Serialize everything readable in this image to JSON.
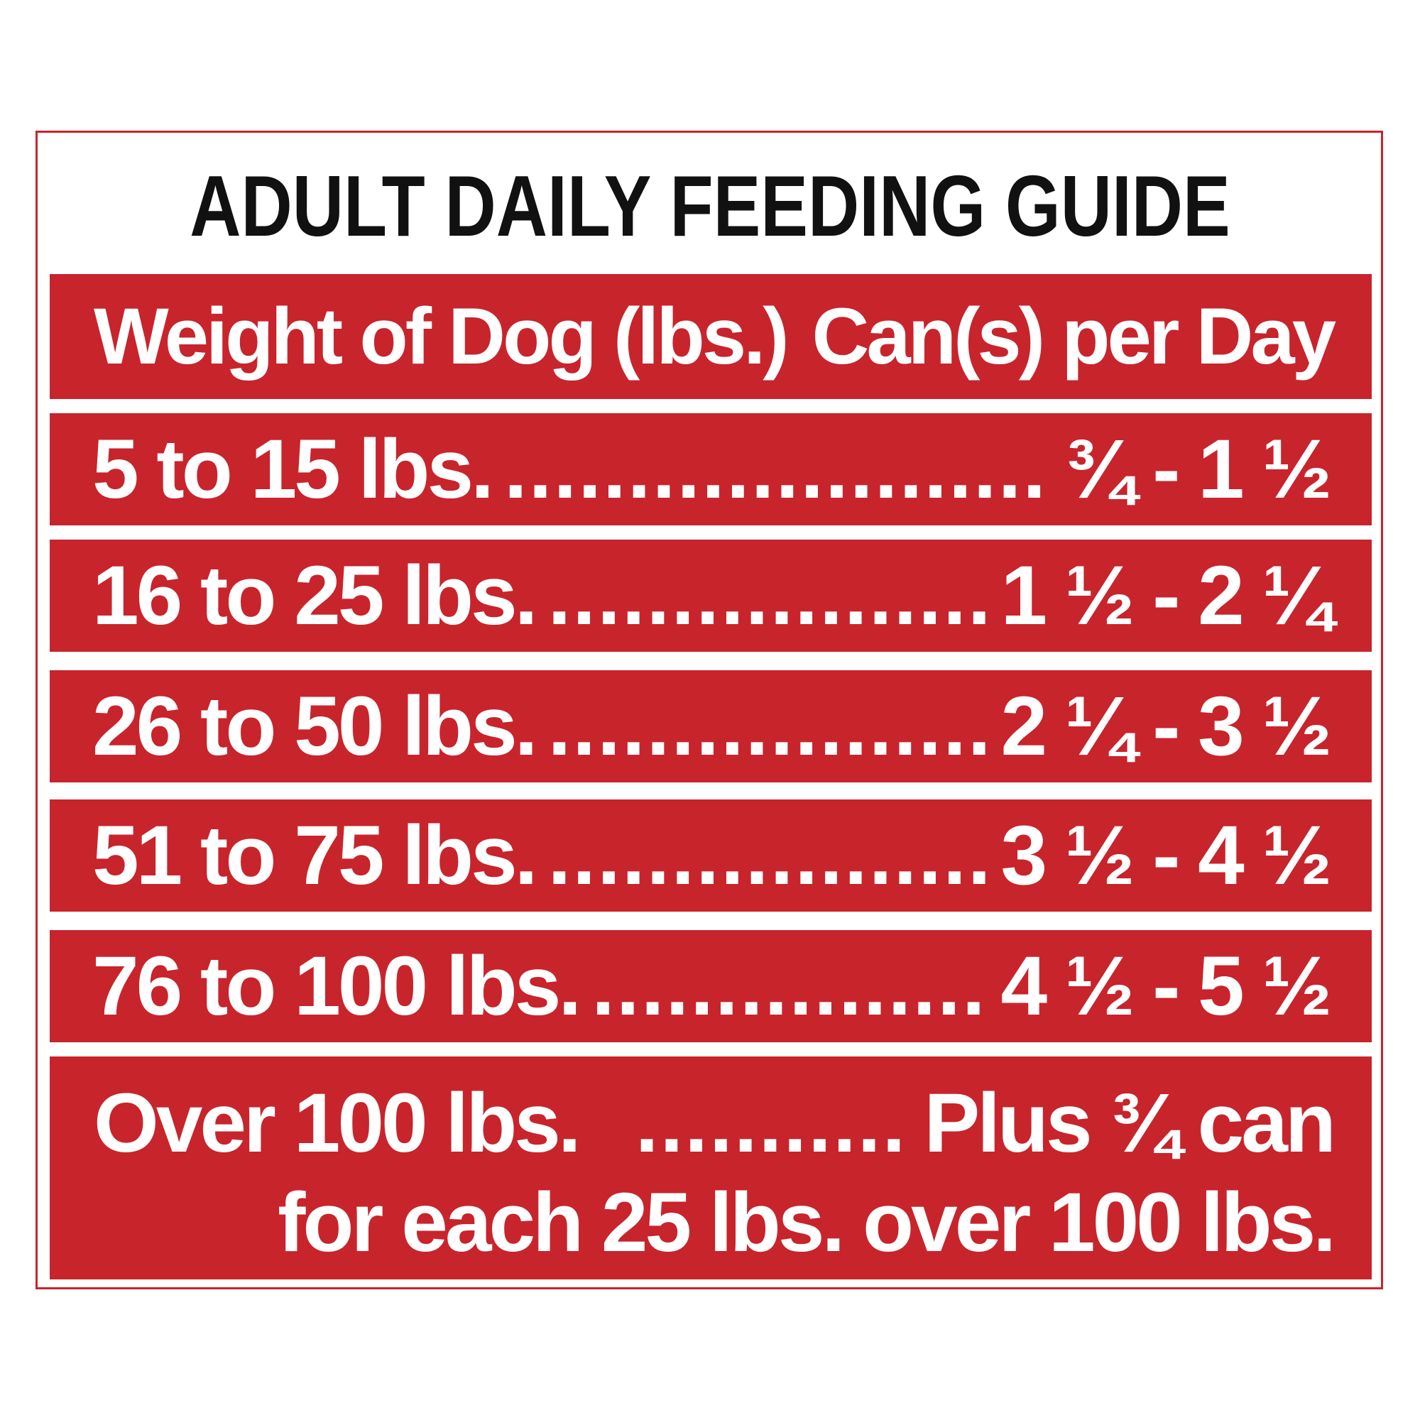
{
  "title": "ADULT DAILY FEEDING GUIDE",
  "table": {
    "header": {
      "weight": "Weight of Dog (lbs.)",
      "cans": "Can(s) per Day"
    },
    "dots": "..................................................",
    "rows": [
      {
        "weight": "5 to 15 lbs.",
        "amount": "¾ - 1 ½"
      },
      {
        "weight": "16 to 25 lbs.",
        "amount": "1 ½ - 2 ¼"
      },
      {
        "weight": "26 to 50 lbs.",
        "amount": "2 ¼ - 3 ½"
      },
      {
        "weight": "51 to 75 lbs.",
        "amount": "3 ½ - 4 ½"
      },
      {
        "weight": "76 to 100 lbs.",
        "amount": "4 ½ - 5 ½"
      }
    ],
    "last_row": {
      "weight": "Over 100 lbs.",
      "amount": "Plus ¾ can",
      "note": "for each 25 lbs. over 100 lbs."
    }
  },
  "colors": {
    "band": "#c8242c",
    "text_light": "#ffffff",
    "text_dark": "#111111"
  }
}
